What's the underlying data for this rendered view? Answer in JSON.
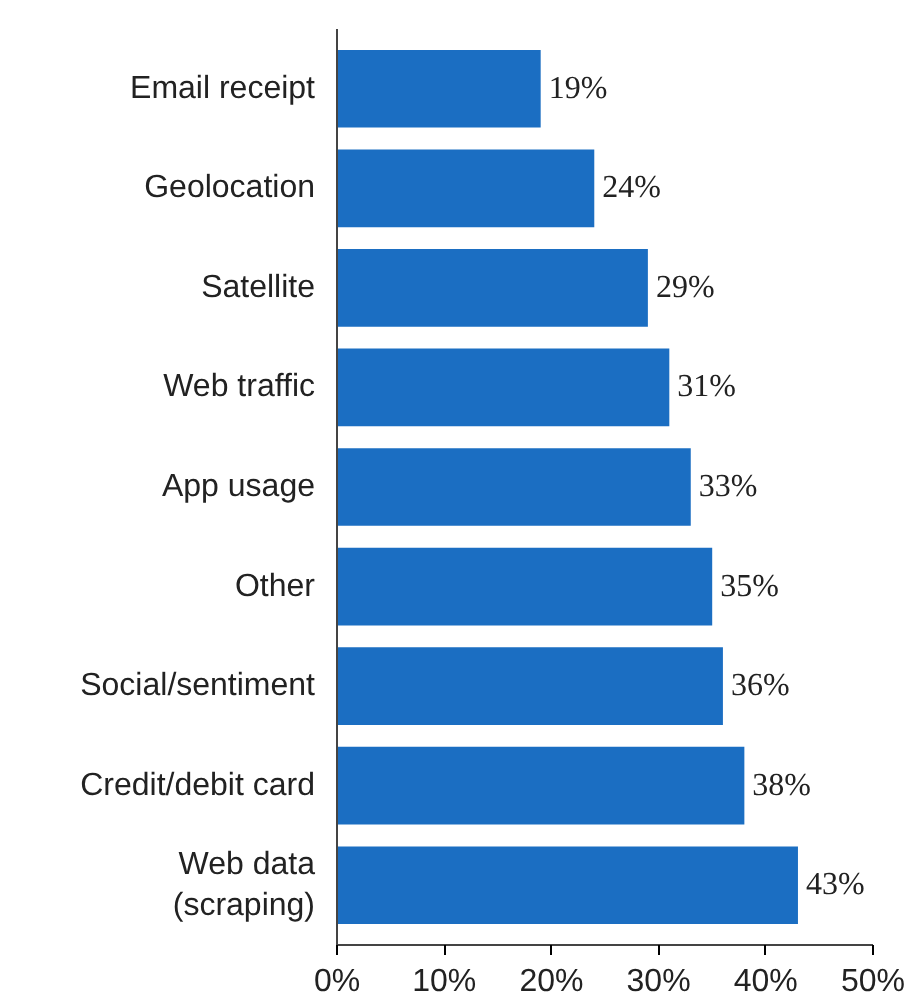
{
  "chart_data": {
    "type": "bar",
    "orientation": "horizontal",
    "categories": [
      "Email receipt",
      "Geolocation",
      "Satellite",
      "Web traffic",
      "App usage",
      "Other",
      "Social/sentiment",
      "Credit/debit card",
      "Web data\n(scraping)"
    ],
    "values": [
      19,
      24,
      29,
      31,
      33,
      35,
      36,
      38,
      43
    ],
    "value_labels": [
      "19%",
      "24%",
      "29%",
      "31%",
      "33%",
      "35%",
      "36%",
      "38%",
      "43%"
    ],
    "color": "#1b6ec2",
    "xlim": [
      0,
      50
    ],
    "xticks": [
      {
        "value": 0,
        "label": "0%"
      },
      {
        "value": 10,
        "label": "10%"
      },
      {
        "value": 20,
        "label": "20%"
      },
      {
        "value": 30,
        "label": "30%"
      },
      {
        "value": 40,
        "label": "40%"
      },
      {
        "value": 50,
        "label": "50%"
      }
    ],
    "grid": false
  }
}
